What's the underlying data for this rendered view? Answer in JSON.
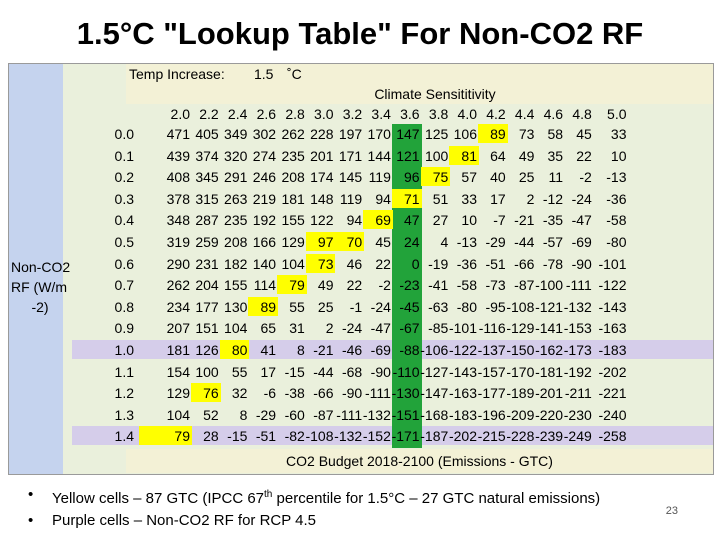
{
  "title": "1.5°C \"Lookup Table\" For Non-CO2 RF",
  "temp_increase": {
    "label": "Temp Increase:",
    "value": "1.5",
    "unit": "˚C"
  },
  "climate_sensitivity_label": "Climate Sensititivity",
  "sensitivities": [
    "2.0",
    "2.2",
    "2.4",
    "2.6",
    "2.8",
    "3.0",
    "3.2",
    "3.4",
    "3.6",
    "3.8",
    "4.0",
    "4.2",
    "4.4",
    "4.6",
    "4.8",
    "5.0"
  ],
  "row_axis_label": [
    "Non-CO2",
    "RF  (W/m",
    "-2)"
  ],
  "rf_values": [
    "0.0",
    "0.1",
    "0.2",
    "0.3",
    "0.4",
    "0.5",
    "0.6",
    "0.7",
    "0.8",
    "0.9",
    "1.0",
    "1.1",
    "1.2",
    "1.3",
    "1.4"
  ],
  "table": [
    [
      "471",
      "405",
      "349",
      "302",
      "262",
      "228",
      "197",
      "170",
      "147",
      "125",
      "106",
      "89",
      "73",
      "58",
      "45",
      "33"
    ],
    [
      "439",
      "374",
      "320",
      "274",
      "235",
      "201",
      "171",
      "144",
      "121",
      "100",
      "81",
      "64",
      "49",
      "35",
      "22",
      "10"
    ],
    [
      "408",
      "345",
      "291",
      "246",
      "208",
      "174",
      "145",
      "119",
      "96",
      "75",
      "57",
      "40",
      "25",
      "11",
      "-2",
      "-13"
    ],
    [
      "378",
      "315",
      "263",
      "219",
      "181",
      "148",
      "119",
      "94",
      "71",
      "51",
      "33",
      "17",
      "2",
      "-12",
      "-24",
      "-36"
    ],
    [
      "348",
      "287",
      "235",
      "192",
      "155",
      "122",
      "94",
      "69",
      "47",
      "27",
      "10",
      "-7",
      "-21",
      "-35",
      "-47",
      "-58"
    ],
    [
      "319",
      "259",
      "208",
      "166",
      "129",
      "97",
      "70",
      "45",
      "24",
      "4",
      "-13",
      "-29",
      "-44",
      "-57",
      "-69",
      "-80"
    ],
    [
      "290",
      "231",
      "182",
      "140",
      "104",
      "73",
      "46",
      "22",
      "0",
      "-19",
      "-36",
      "-51",
      "-66",
      "-78",
      "-90",
      "-101"
    ],
    [
      "262",
      "204",
      "155",
      "114",
      "79",
      "49",
      "22",
      "-2",
      "-23",
      "-41",
      "-58",
      "-73",
      "-87",
      "-100",
      "-111",
      "-122"
    ],
    [
      "234",
      "177",
      "130",
      "89",
      "55",
      "25",
      "-1",
      "-24",
      "-45",
      "-63",
      "-80",
      "-95",
      "-108",
      "-121",
      "-132",
      "-143"
    ],
    [
      "207",
      "151",
      "104",
      "65",
      "31",
      "2",
      "-24",
      "-47",
      "-67",
      "-85",
      "-101",
      "-116",
      "-129",
      "-141",
      "-153",
      "-163"
    ],
    [
      "181",
      "126",
      "80",
      "41",
      "8",
      "-21",
      "-46",
      "-69",
      "-88",
      "-106",
      "-122",
      "-137",
      "-150",
      "-162",
      "-173",
      "-183"
    ],
    [
      "154",
      "100",
      "55",
      "17",
      "-15",
      "-44",
      "-68",
      "-90",
      "-110",
      "-127",
      "-143",
      "-157",
      "-170",
      "-181",
      "-192",
      "-202"
    ],
    [
      "129",
      "76",
      "32",
      "-6",
      "-38",
      "-66",
      "-90",
      "-111",
      "-130",
      "-147",
      "-163",
      "-177",
      "-189",
      "-201",
      "-211",
      "-221"
    ],
    [
      "104",
      "52",
      "8",
      "-29",
      "-60",
      "-87",
      "-111",
      "-132",
      "-151",
      "-168",
      "-183",
      "-196",
      "-209",
      "-220",
      "-230",
      "-240"
    ],
    [
      "79",
      "28",
      "-15",
      "-51",
      "-82",
      "-108",
      "-132",
      "-152",
      "-171",
      "-187",
      "-202",
      "-215",
      "-228",
      "-239",
      "-249",
      "-258"
    ]
  ],
  "budget_label": "CO2 Budget 2018-2100 (Emissions - GTC)",
  "yellow_cells": [
    [
      0,
      11
    ],
    [
      1,
      10
    ],
    [
      2,
      9
    ],
    [
      3,
      8
    ],
    [
      4,
      7
    ],
    [
      5,
      6
    ],
    [
      5,
      5
    ],
    [
      6,
      5
    ],
    [
      7,
      4
    ],
    [
      8,
      3
    ],
    [
      10,
      2
    ],
    [
      12,
      1
    ],
    [
      14,
      0
    ]
  ],
  "purple_rows": [
    10,
    14
  ],
  "green_column": 8,
  "colors": {
    "yellow": "#ffff00",
    "green": "#22a33a",
    "purple": "#d5cdea",
    "label_band": "#c5d3ee",
    "header_band": "#f3f1d6",
    "body_bg": "#eaf0dc"
  },
  "bullets": [
    {
      "marker": "•",
      "text": "Yellow cells – 87 GTC (IPCC 67",
      "sup": "th",
      "text2": " percentile for 1.5°C – 27  GTC natural emissions)"
    },
    {
      "marker": "•",
      "text": "Purple cells – Non-CO2 RF for RCP 4.5"
    }
  ],
  "page_number": "23"
}
